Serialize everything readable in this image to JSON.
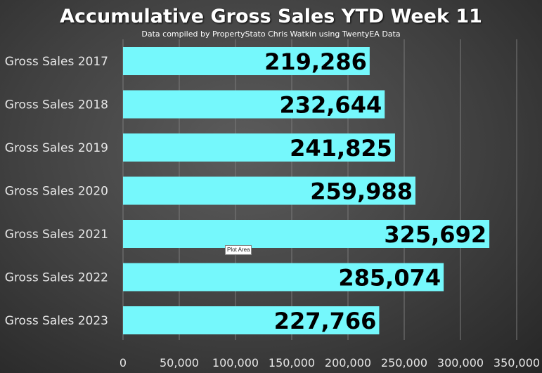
{
  "chart_data": {
    "type": "bar",
    "orientation": "horizontal",
    "title": "Accumulative Gross Sales YTD Week 11",
    "subtitle": "Data compiled by PropertyStato Chris Watkin using TwentyEA Data",
    "categories": [
      "Gross Sales 2017",
      "Gross Sales 2018",
      "Gross Sales 2019",
      "Gross Sales 2020",
      "Gross Sales 2021",
      "Gross Sales 2022",
      "Gross Sales 2023"
    ],
    "values": [
      219286,
      232644,
      241825,
      259988,
      325692,
      285074,
      227766
    ],
    "data_labels": [
      "219,286",
      "232,644",
      "241,825",
      "259,988",
      "325,692",
      "285,074",
      "227,766"
    ],
    "xlim": [
      0,
      350000
    ],
    "xticks": [
      0,
      50000,
      100000,
      150000,
      200000,
      250000,
      300000,
      350000
    ],
    "xtick_labels": [
      "0",
      "50,000",
      "100,000",
      "150,000",
      "200,000",
      "250,000",
      "300,000",
      "350,000"
    ],
    "xlabel": "",
    "ylabel": "",
    "grid": true,
    "legend": "none",
    "bar_color": "#75f8fc",
    "background_color": "#4a4a4a",
    "plot_area_tooltip": "Plot Area"
  }
}
